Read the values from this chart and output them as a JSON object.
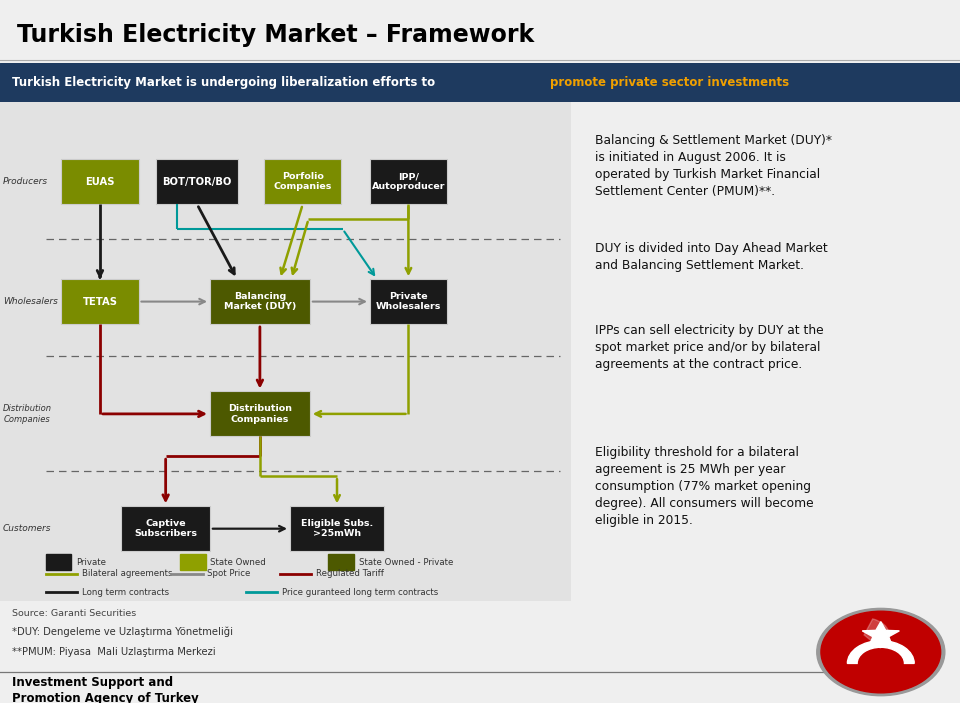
{
  "title": "Turkish Electricity Market – Framework",
  "subtitle_white": "Turkish Electricity Market is undergoing liberalization efforts to ",
  "subtitle_gold": "promote private sector investments",
  "bg_color": "#efefef",
  "subtitle_bg": "#1e3a5f",
  "diagram_bg": "#e2e2e2",
  "right_bg": "#f5f5f5",
  "footer_bg": "#efefef",
  "right_texts": [
    "Balancing & Settlement Market (DUY)*\nis initiated in August 2006. It is\noperated by Turkish Market Financial\nSettlement Center (PMUM)**.",
    "DUY is divided into Day Ahead Market\nand Balancing Settlement Market.",
    "IPPs can sell electricity by DUY at the\nspot market price and/or by bilateral\nagreements at the contract price.",
    "Eligibility threshold for a bilateral\nagreement is 25 MWh per year\nconsumption (77% market opening\ndegree). All consumers will become\neligible in 2015."
  ],
  "source_text": "Source: Garanti Securities",
  "footnote1": "*DUY: Dengeleme ve Uzlaştırma Yönetmeliği",
  "footnote2": "**PMUM: Piyasa  Mali Uzlaştırma Merkezi",
  "footer_bold": "Investment Support and\nPromotion Agency of Turkey",
  "col_olive": "#7a8c00",
  "col_dark_olive": "#4d5900",
  "col_black": "#1a1a1a",
  "col_dark_red": "#8b0000",
  "col_olive_line": "#8fa000",
  "col_gray": "#888888",
  "col_cyan": "#009999"
}
